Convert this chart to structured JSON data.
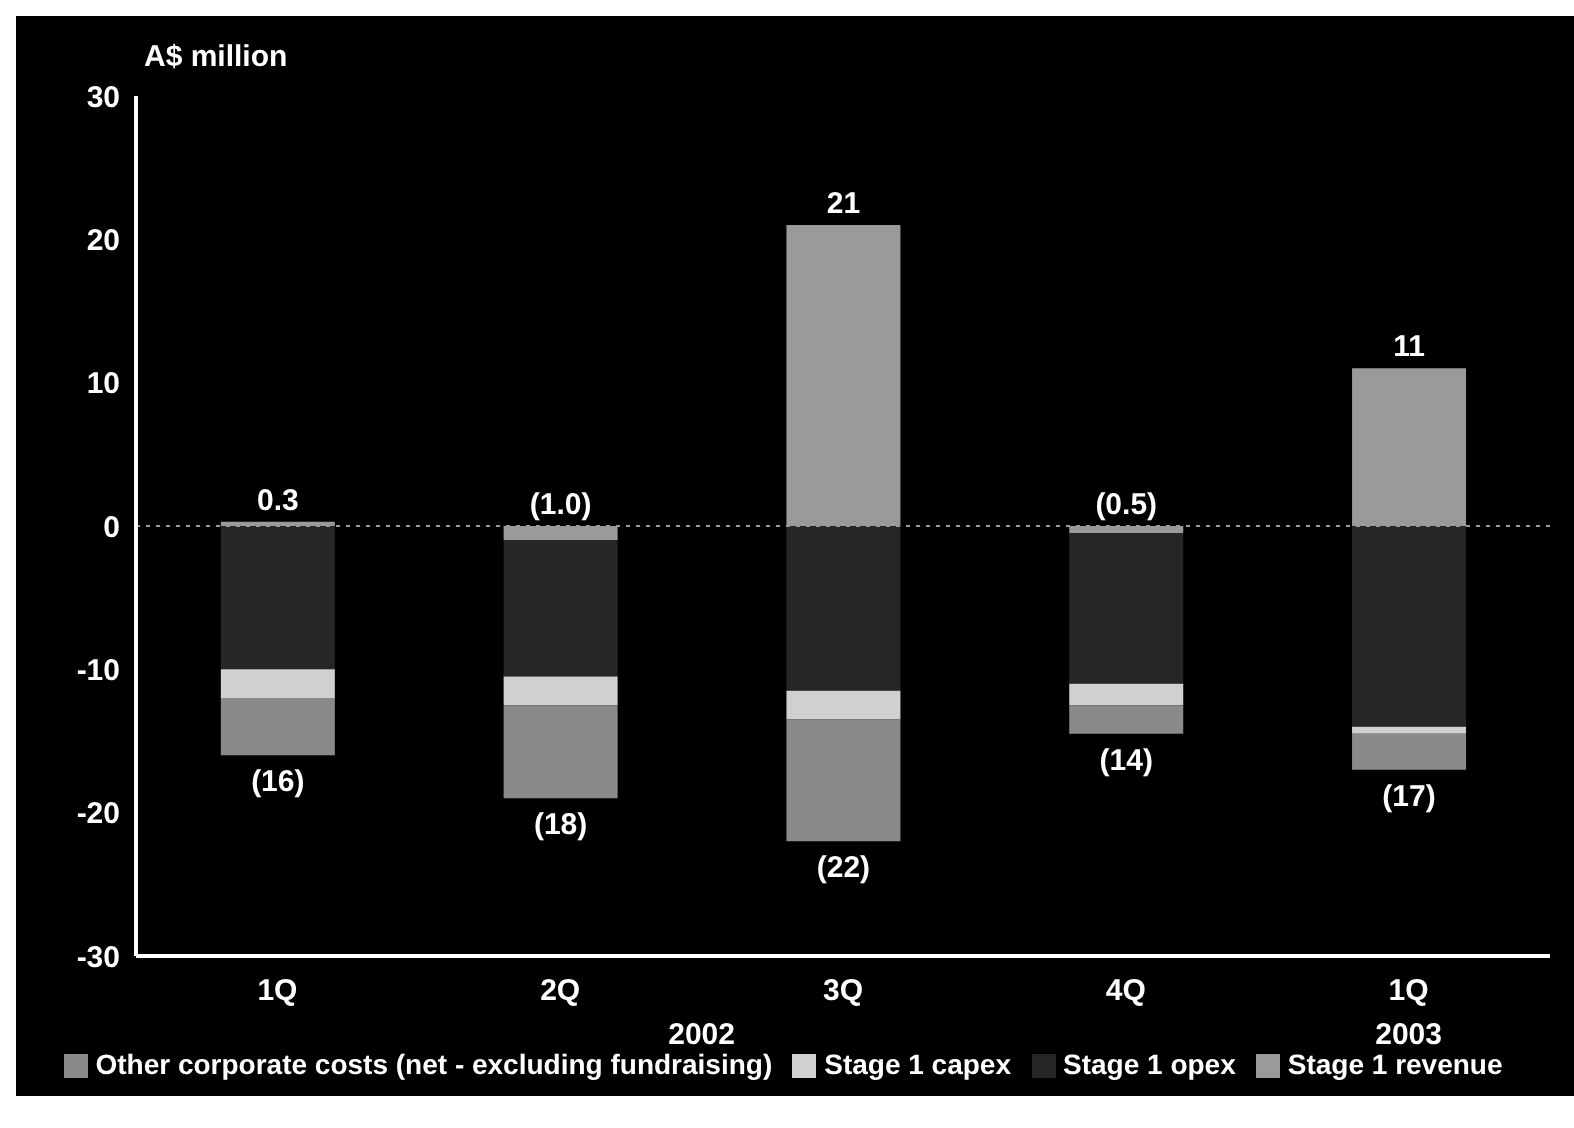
{
  "chart_data": {
    "type": "bar",
    "stacked": true,
    "ylabel": "A$ million",
    "categories": [
      "1Q",
      "2Q",
      "3Q",
      "4Q",
      "1Q"
    ],
    "annotations": [
      "2002",
      "2003",
      "(16)",
      "(18)",
      "(22)",
      "(14)",
      "(17)"
    ],
    "series": [
      {
        "name": "Stage 1 revenue",
        "color": "#9a9a9a",
        "values": [
          0.3,
          -1.0,
          21,
          -0.5,
          11
        ],
        "value_labels": [
          "0.3",
          "(1.0)",
          "21",
          "(0.5)",
          "11"
        ]
      },
      {
        "name": "Stage 1 opex",
        "color": "#262626",
        "values": [
          -10,
          -9.5,
          -11.5,
          -10.5,
          -14
        ]
      },
      {
        "name": "Stage 1 capex",
        "color": "#d0d0d0",
        "values": [
          -2,
          -2,
          -2,
          -1.5,
          -0.5
        ]
      },
      {
        "name": "Other corporate costs (net - excluding fundraising)",
        "color": "#8a8a8a",
        "values": [
          -4,
          -6.5,
          -8.5,
          -2,
          -2.5
        ]
      }
    ],
    "ref_lines": [
      {
        "axis": "y",
        "value": 0,
        "color": "#9a9a9a",
        "line_style": "dotted"
      }
    ],
    "ylim": [
      -30,
      30
    ],
    "yticks": [
      -30,
      -20,
      -10,
      0,
      10,
      20,
      30
    ],
    "grid": false,
    "legend": "bottom"
  }
}
